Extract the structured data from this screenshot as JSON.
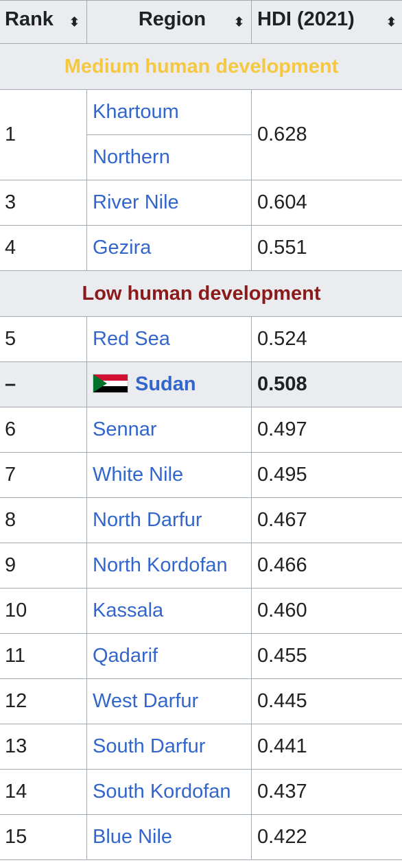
{
  "header": {
    "rank": "Rank",
    "region": "Region",
    "hdi": "HDI (2021)",
    "sort_glyph": "⬍"
  },
  "groups": {
    "medium": "Medium human development",
    "low": "Low human development"
  },
  "rows": [
    {
      "rank": "1",
      "region": "Khartoum",
      "hdi": "0.628"
    },
    {
      "rank": "",
      "region": "Northern",
      "hdi": ""
    },
    {
      "rank": "3",
      "region": "River Nile",
      "hdi": "0.604"
    },
    {
      "rank": "4",
      "region": "Gezira",
      "hdi": "0.551"
    },
    {
      "rank": "5",
      "region": "Red Sea",
      "hdi": "0.524"
    },
    {
      "rank": "–",
      "region": "Sudan",
      "hdi": "0.508"
    },
    {
      "rank": "6",
      "region": "Sennar",
      "hdi": "0.497"
    },
    {
      "rank": "7",
      "region": "White Nile",
      "hdi": "0.495"
    },
    {
      "rank": "8",
      "region": "North Darfur",
      "hdi": "0.467"
    },
    {
      "rank": "9",
      "region": "North Kordofan",
      "hdi": "0.466"
    },
    {
      "rank": "10",
      "region": "Kassala",
      "hdi": "0.460"
    },
    {
      "rank": "11",
      "region": "Qadarif",
      "hdi": "0.455"
    },
    {
      "rank": "12",
      "region": "West Darfur",
      "hdi": "0.445"
    },
    {
      "rank": "13",
      "region": "South Darfur",
      "hdi": "0.441"
    },
    {
      "rank": "14",
      "region": "South Kordofan",
      "hdi": "0.437"
    },
    {
      "rank": "15",
      "region": "Blue Nile",
      "hdi": "0.422"
    }
  ],
  "colors": {
    "link": "#3366cc",
    "medium": "#f5c842",
    "low": "#8b1a1a",
    "header_bg": "#eaecf0",
    "border": "#a2a9b1"
  },
  "icons": {
    "sort": "sort-icon",
    "flag": "sudan-flag-icon"
  }
}
